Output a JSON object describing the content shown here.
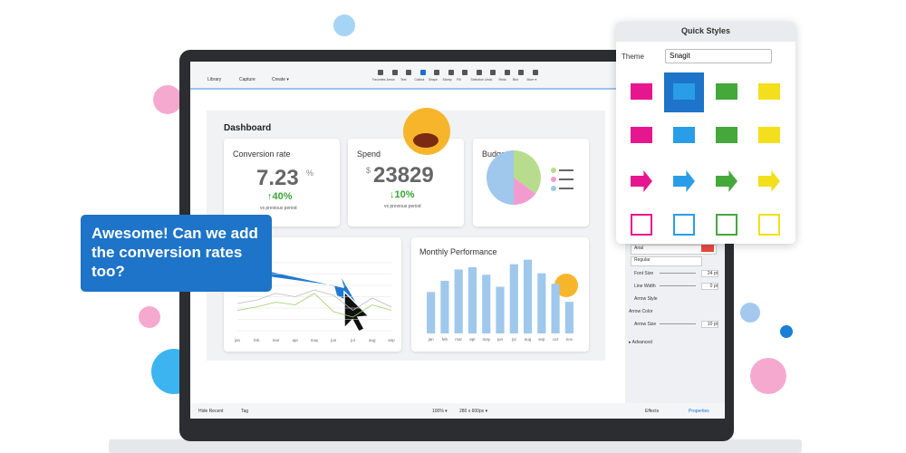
{
  "toolbar": {
    "left": [
      "Library",
      "Capture",
      "Create ▾"
    ],
    "tools": [
      "Favorites",
      "Arrow",
      "Text",
      "Callout",
      "Shape",
      "Stamp",
      "Fill",
      "Selection",
      "Undo",
      "Redo",
      "Blur",
      "More ▾"
    ]
  },
  "dashboard": {
    "title": "Dashboard",
    "conversion": {
      "title": "Conversion rate",
      "value": "7.23",
      "unit": "%",
      "change": "40%",
      "note": "vs previous period"
    },
    "spend": {
      "title": "Spend",
      "currency": "$",
      "value": "23829",
      "change": "10%",
      "note": "vs previous period"
    },
    "budget": {
      "title": "Budget",
      "values": [
        35,
        15,
        50
      ]
    },
    "line_chart": {
      "months": [
        "jan",
        "feb",
        "mar",
        "apr",
        "may",
        "jun",
        "jul",
        "aug",
        "sep"
      ],
      "series": [
        [
          40,
          45,
          55,
          50,
          60,
          52,
          30,
          48,
          35
        ],
        [
          30,
          35,
          42,
          38,
          55,
          28,
          20,
          38,
          30
        ]
      ]
    },
    "monthly": {
      "title": "Monthly Performance",
      "months": [
        "jan",
        "feb",
        "mar",
        "apr",
        "may",
        "jun",
        "jul",
        "aug",
        "sep",
        "oct",
        "nov"
      ],
      "values": [
        55,
        70,
        85,
        88,
        78,
        62,
        92,
        98,
        80,
        66,
        42
      ]
    }
  },
  "callout": "Awesome! Can we add the conversion rates too?",
  "quick_styles": {
    "title": "Quick Styles",
    "theme_label": "Theme",
    "theme": "Snagit"
  },
  "properties": {
    "font": "Arial",
    "style": "Regular",
    "rows": [
      {
        "label": "Font Size",
        "value": "24 pt"
      },
      {
        "label": "Line Width",
        "value": "0 pt"
      },
      {
        "label": "Arrow Style"
      },
      {
        "label": "Arrow Color"
      },
      {
        "label": "Arrow Size",
        "value": "10 pt"
      }
    ],
    "advanced": "Advanced"
  },
  "status": {
    "hide_recent": "Hide Recent",
    "tag": "Tag",
    "zoom": "100% ▾",
    "size": "280 x 600px ▾",
    "effects": "Effects",
    "properties": "Properties"
  }
}
